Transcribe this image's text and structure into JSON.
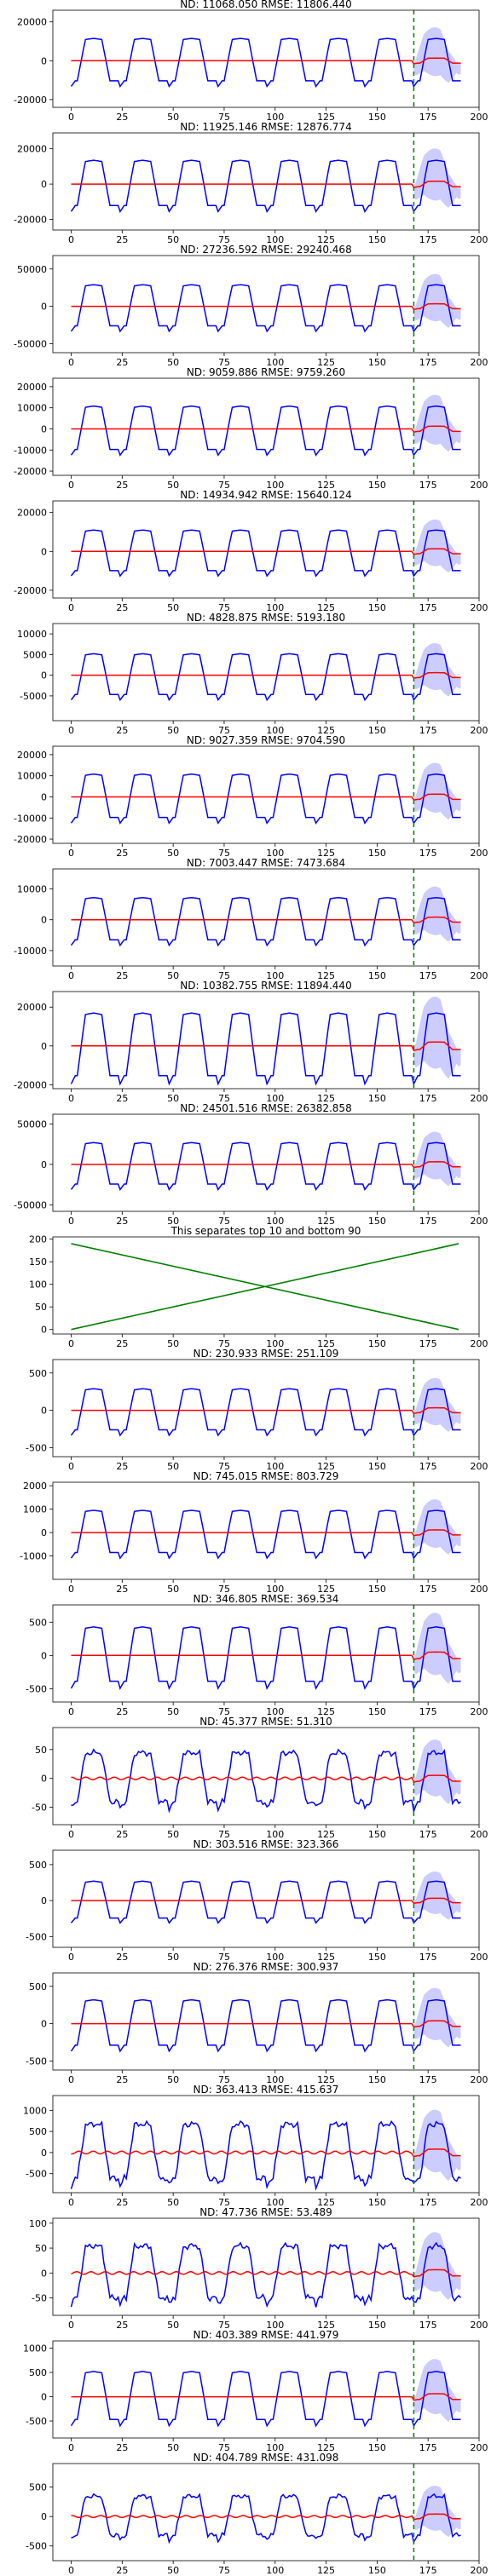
{
  "chart_data": [
    {
      "type": "line",
      "title": "ND:  11068.050 RMSE:  11806.440",
      "amp": 11500,
      "yticks": [
        -20000,
        0,
        20000
      ],
      "ylim": [
        -24000,
        26000
      ],
      "noisy": false
    },
    {
      "type": "line",
      "title": "ND:  11925.146 RMSE:  12876.774",
      "amp": 13500,
      "yticks": [
        -20000,
        0,
        20000
      ],
      "ylim": [
        -26000,
        29000
      ],
      "noisy": false
    },
    {
      "type": "line",
      "title": "ND:  27236.592 RMSE:  29240.468",
      "amp": 29000,
      "yticks": [
        -50000,
        0,
        50000
      ],
      "ylim": [
        -62000,
        68000
      ],
      "noisy": false
    },
    {
      "type": "line",
      "title": "ND:  9059.886 RMSE:  9759.260",
      "amp": 10800,
      "yticks": [
        -20000,
        -10000,
        0,
        10000,
        20000
      ],
      "ylim": [
        -22000,
        24000
      ],
      "noisy": false
    },
    {
      "type": "line",
      "title": "ND:  14934.942 RMSE:  15640.124",
      "amp": 11000,
      "yticks": [
        -20000,
        0,
        20000
      ],
      "ylim": [
        -24000,
        26000
      ],
      "noisy": false
    },
    {
      "type": "line",
      "title": "ND:  4828.875 RMSE:  5193.180",
      "amp": 5200,
      "yticks": [
        -5000,
        0,
        5000,
        10000
      ],
      "ylim": [
        -11000,
        12500
      ],
      "noisy": false
    },
    {
      "type": "line",
      "title": "ND:  9027.359 RMSE:  9704.590",
      "amp": 10800,
      "yticks": [
        -20000,
        -10000,
        0,
        10000,
        20000
      ],
      "ylim": [
        -22000,
        24000
      ],
      "noisy": false
    },
    {
      "type": "line",
      "title": "ND:  7003.447 RMSE:  7473.684",
      "amp": 7200,
      "yticks": [
        -10000,
        0,
        10000
      ],
      "ylim": [
        -15000,
        16500
      ],
      "noisy": false
    },
    {
      "type": "line",
      "title": "ND:  10382.755 RMSE:  11894.440",
      "amp": 17000,
      "yticks": [
        -20000,
        0,
        20000
      ],
      "ylim": [
        -22000,
        28000
      ],
      "noisy": false
    },
    {
      "type": "line",
      "title": "ND:  24501.516 RMSE:  26382.858",
      "amp": 27000,
      "yticks": [
        -50000,
        0,
        50000
      ],
      "ylim": [
        -58000,
        62000
      ],
      "noisy": false
    },
    {
      "type": "separator",
      "title": "This separates top 10 and bottom 90",
      "yticks": [
        0,
        50,
        100,
        150,
        200
      ],
      "ylim": [
        -10,
        205
      ]
    },
    {
      "type": "line",
      "title": "ND:  230.933 RMSE:  251.109",
      "amp": 290,
      "yticks": [
        -500,
        0,
        500
      ],
      "ylim": [
        -620,
        680
      ],
      "noisy": false
    },
    {
      "type": "line",
      "title": "ND:  745.015 RMSE:  803.729",
      "amp": 950,
      "yticks": [
        -1000,
        0,
        1000,
        2000
      ],
      "ylim": [
        -2000,
        2150
      ],
      "noisy": false
    },
    {
      "type": "line",
      "title": "ND:  346.805 RMSE:  369.534",
      "amp": 430,
      "yticks": [
        -500,
        0,
        500
      ],
      "ylim": [
        -700,
        760
      ],
      "noisy": false
    },
    {
      "type": "line",
      "title": "ND:  45.377 RMSE:  51.310",
      "amp": 45,
      "yticks": [
        -50,
        0,
        50
      ],
      "ylim": [
        -80,
        88
      ],
      "noisy": true
    },
    {
      "type": "line",
      "title": "ND:  303.516 RMSE:  323.366",
      "amp": 270,
      "yticks": [
        -500,
        0,
        500
      ],
      "ylim": [
        -650,
        700
      ],
      "noisy": false
    },
    {
      "type": "line",
      "title": "ND:  276.376 RMSE:  300.937",
      "amp": 320,
      "yticks": [
        -500,
        0,
        500
      ],
      "ylim": [
        -620,
        680
      ],
      "noisy": false
    },
    {
      "type": "line",
      "title": "ND:  363.413 RMSE:  415.637",
      "amp": 680,
      "yticks": [
        -500,
        0,
        500,
        1000
      ],
      "ylim": [
        -950,
        1350
      ],
      "noisy": true
    },
    {
      "type": "line",
      "title": "ND:  47.736 RMSE:  53.489",
      "amp": 55,
      "yticks": [
        -50,
        0,
        50,
        100
      ],
      "ylim": [
        -85,
        110
      ],
      "noisy": true
    },
    {
      "type": "line",
      "title": "ND:  403.389 RMSE:  441.979",
      "amp": 520,
      "yticks": [
        -500,
        0,
        500,
        1000
      ],
      "ylim": [
        -850,
        1150
      ],
      "noisy": false
    },
    {
      "type": "line",
      "title": "ND:  404.789 RMSE:  431.098",
      "amp": 350,
      "yticks": [
        -500,
        0,
        500
      ],
      "ylim": [
        -750,
        900
      ],
      "noisy": true
    }
  ],
  "xticks": [
    0,
    25,
    50,
    75,
    100,
    125,
    150,
    175,
    200
  ],
  "xlim": [
    -9,
    200
  ],
  "forecast_start": 168,
  "forecast_end": 191,
  "colors": {
    "target": "#0000ff",
    "prediction": "#ff0000",
    "band": "#aaaaff",
    "divider": "#008000",
    "separator_lines": "#008000"
  }
}
